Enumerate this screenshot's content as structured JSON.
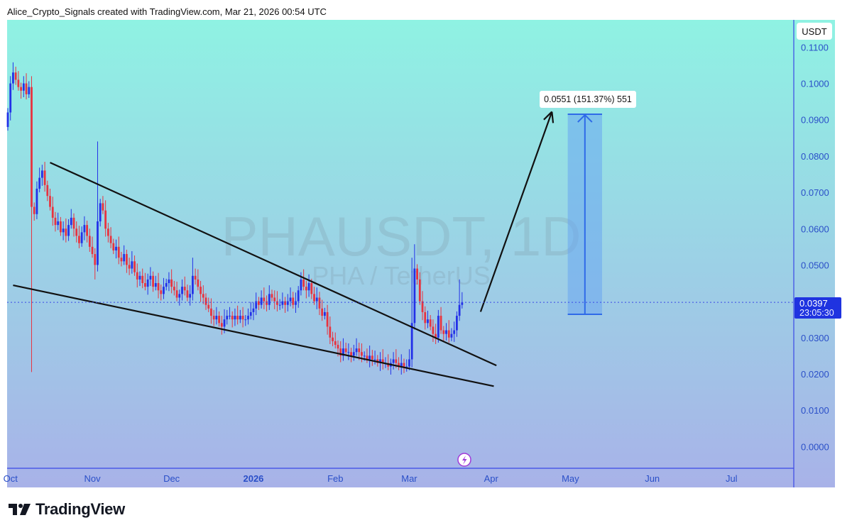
{
  "header": {
    "text": "Alice_Crypto_Signals created with TradingView.com, Mar 21, 2026 00:54 UTC"
  },
  "brand": {
    "name": "TradingView"
  },
  "chart_data": {
    "type": "candlestick",
    "symbol_watermark": "PHAUSDT, 1D",
    "pair_watermark": "PHA / TetherUS",
    "currency": "USDT",
    "interval": "1D",
    "start_date": "2025-09-30",
    "closes": [
      0.092,
      0.1,
      0.103,
      0.101,
      0.099,
      0.098,
      0.1,
      0.097,
      0.099,
      0.066,
      0.064,
      0.071,
      0.074,
      0.076,
      0.072,
      0.069,
      0.066,
      0.063,
      0.061,
      0.062,
      0.059,
      0.06,
      0.058,
      0.061,
      0.063,
      0.06,
      0.058,
      0.056,
      0.059,
      0.061,
      0.058,
      0.055,
      0.053,
      0.05,
      0.062,
      0.067,
      0.065,
      0.06,
      0.058,
      0.056,
      0.054,
      0.055,
      0.052,
      0.051,
      0.053,
      0.05,
      0.049,
      0.051,
      0.048,
      0.046,
      0.047,
      0.045,
      0.044,
      0.046,
      0.047,
      0.044,
      0.045,
      0.043,
      0.042,
      0.044,
      0.045,
      0.046,
      0.044,
      0.043,
      0.041,
      0.042,
      0.044,
      0.043,
      0.041,
      0.042,
      0.047,
      0.046,
      0.044,
      0.042,
      0.041,
      0.039,
      0.038,
      0.036,
      0.035,
      0.036,
      0.034,
      0.033,
      0.035,
      0.036,
      0.036,
      0.035,
      0.036,
      0.035,
      0.036,
      0.035,
      0.035,
      0.036,
      0.037,
      0.038,
      0.04,
      0.039,
      0.041,
      0.04,
      0.039,
      0.042,
      0.041,
      0.04,
      0.039,
      0.039,
      0.04,
      0.039,
      0.04,
      0.041,
      0.039,
      0.04,
      0.043,
      0.046,
      0.044,
      0.043,
      0.045,
      0.042,
      0.04,
      0.041,
      0.038,
      0.036,
      0.037,
      0.033,
      0.03,
      0.029,
      0.028,
      0.027,
      0.025,
      0.027,
      0.026,
      0.026,
      0.025,
      0.026,
      0.027,
      0.026,
      0.025,
      0.025,
      0.024,
      0.025,
      0.024,
      0.024,
      0.023,
      0.024,
      0.023,
      0.023,
      0.022,
      0.023,
      0.024,
      0.023,
      0.022,
      0.023,
      0.022,
      0.022,
      0.024,
      0.034,
      0.049,
      0.046,
      0.04,
      0.037,
      0.034,
      0.035,
      0.033,
      0.031,
      0.03,
      0.036,
      0.032,
      0.031,
      0.032,
      0.03,
      0.031,
      0.032,
      0.036,
      0.039,
      0.0397
    ],
    "first_open": 0.088,
    "wick_overrides": [
      {
        "date": "2025-10-09",
        "high": 0.102,
        "low": 0.0205
      },
      {
        "date": "2025-11-02",
        "low": 0.046
      },
      {
        "date": "2025-11-03",
        "high": 0.084
      },
      {
        "date": "2025-12-09",
        "high": 0.052
      },
      {
        "date": "2026-01-19",
        "high": 0.048
      },
      {
        "date": "2026-03-02",
        "high": 0.052
      },
      {
        "date": "2026-03-03",
        "high": 0.0557
      },
      {
        "date": "2026-03-20",
        "high": 0.046
      }
    ],
    "last_price": "0.0397",
    "countdown": "23:05:30",
    "y_ticks": [
      "0.1100",
      "0.1000",
      "0.0900",
      "0.0800",
      "0.0700",
      "0.0600",
      "0.0500",
      "0.0300",
      "0.0200",
      "0.0100",
      "0.0000"
    ],
    "ylim": [
      -0.006,
      0.1175
    ],
    "x_ticks": [
      {
        "label": "Oct",
        "date": "2025-10-01",
        "bold": false
      },
      {
        "label": "Nov",
        "date": "2025-11-01",
        "bold": false
      },
      {
        "label": "Dec",
        "date": "2025-12-01",
        "bold": false
      },
      {
        "label": "2026",
        "date": "2026-01-01",
        "bold": true
      },
      {
        "label": "Feb",
        "date": "2026-02-01",
        "bold": false
      },
      {
        "label": "Mar",
        "date": "2026-03-01",
        "bold": false
      },
      {
        "label": "Apr",
        "date": "2026-04-01",
        "bold": false
      },
      {
        "label": "May",
        "date": "2026-05-01",
        "bold": false
      },
      {
        "label": "Jun",
        "date": "2026-06-01",
        "bold": false
      },
      {
        "label": "Jul",
        "date": "2026-07-01",
        "bold": false
      }
    ],
    "drawings": {
      "upper_trendline": [
        {
          "date": "2025-10-16",
          "price": 0.0782
        },
        {
          "date": "2026-04-03",
          "price": 0.0223
        }
      ],
      "lower_trendline": [
        {
          "date": "2025-10-02",
          "price": 0.0444
        },
        {
          "date": "2026-04-02",
          "price": 0.0166
        }
      ],
      "arrow": [
        {
          "date": "2026-03-28",
          "price": 0.0371
        },
        {
          "date": "2026-04-24",
          "price": 0.0922
        }
      ],
      "measure": {
        "from_date": "2026-04-30",
        "to_date": "2026-05-13",
        "from_price": 0.0364,
        "to_price": 0.0915,
        "label": "0.0551 (151.37%) 551"
      }
    },
    "colors": {
      "up": "#2331e8",
      "down": "#e8333f",
      "axis": "#3a48e6",
      "axis_text": "#2a4fc8",
      "bg_top": "#8ff2e3",
      "bg_bottom": "#a8b2e8",
      "price_label": "#1f33e0",
      "measure_fill": "#6aa6f0",
      "measure_line": "#2f6ae8"
    }
  }
}
